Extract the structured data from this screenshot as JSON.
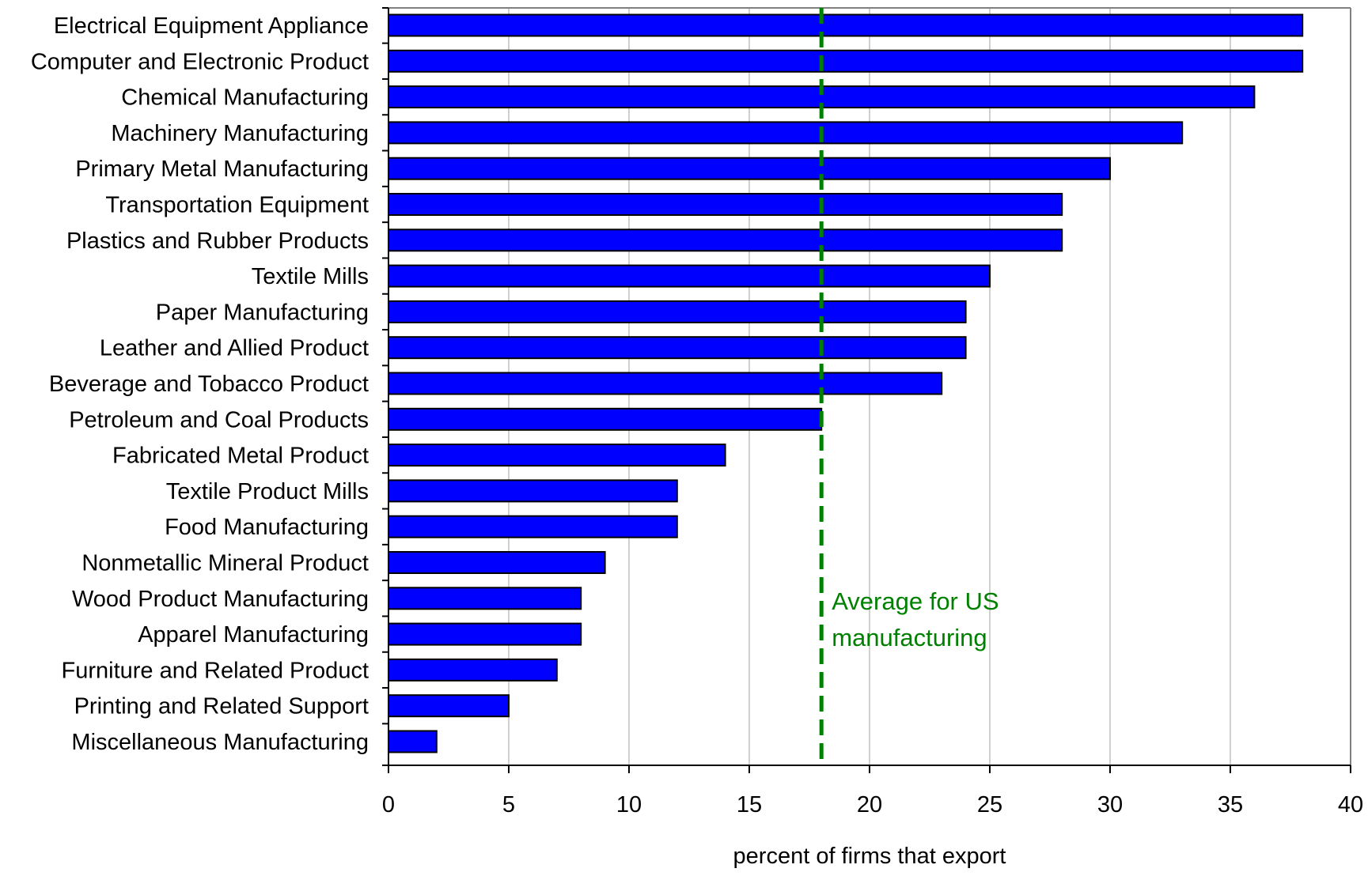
{
  "chart_data": {
    "type": "bar",
    "orientation": "horizontal",
    "title": "",
    "xlabel": "percent of firms that export",
    "ylabel": "",
    "xlim": [
      0,
      40
    ],
    "xticks": [
      0,
      5,
      10,
      15,
      20,
      25,
      30,
      35,
      40
    ],
    "grid": "vertical gridlines at each x tick",
    "legend": "none",
    "categories": [
      "Electrical Equipment Appliance",
      "Computer and Electronic Product",
      "Chemical Manufacturing",
      "Machinery Manufacturing",
      "Primary Metal Manufacturing",
      "Transportation Equipment",
      "Plastics and Rubber Products",
      "Textile Mills",
      "Paper Manufacturing",
      "Leather and Allied Product",
      "Beverage and Tobacco Product",
      "Petroleum and Coal Products",
      "Fabricated Metal Product",
      "Textile Product Mills",
      "Food Manufacturing",
      "Nonmetallic Mineral Product",
      "Wood Product Manufacturing",
      "Apparel Manufacturing",
      "Furniture and Related Product",
      "Printing and Related Support",
      "Miscellaneous Manufacturing"
    ],
    "values": [
      38,
      38,
      36,
      33,
      30,
      28,
      28,
      25,
      24,
      24,
      23,
      18,
      14,
      12,
      12,
      9,
      8,
      8,
      7,
      5,
      2
    ],
    "reference_line": {
      "value": 18,
      "style": "dashed",
      "label_line1": "Average for US",
      "label_line2": "manufacturing"
    },
    "colors": {
      "bar": "#0000ff",
      "bar_outline": "#000000",
      "reference_line": "#008000",
      "grid": "#a0a0a0",
      "frame": "#808080"
    }
  }
}
